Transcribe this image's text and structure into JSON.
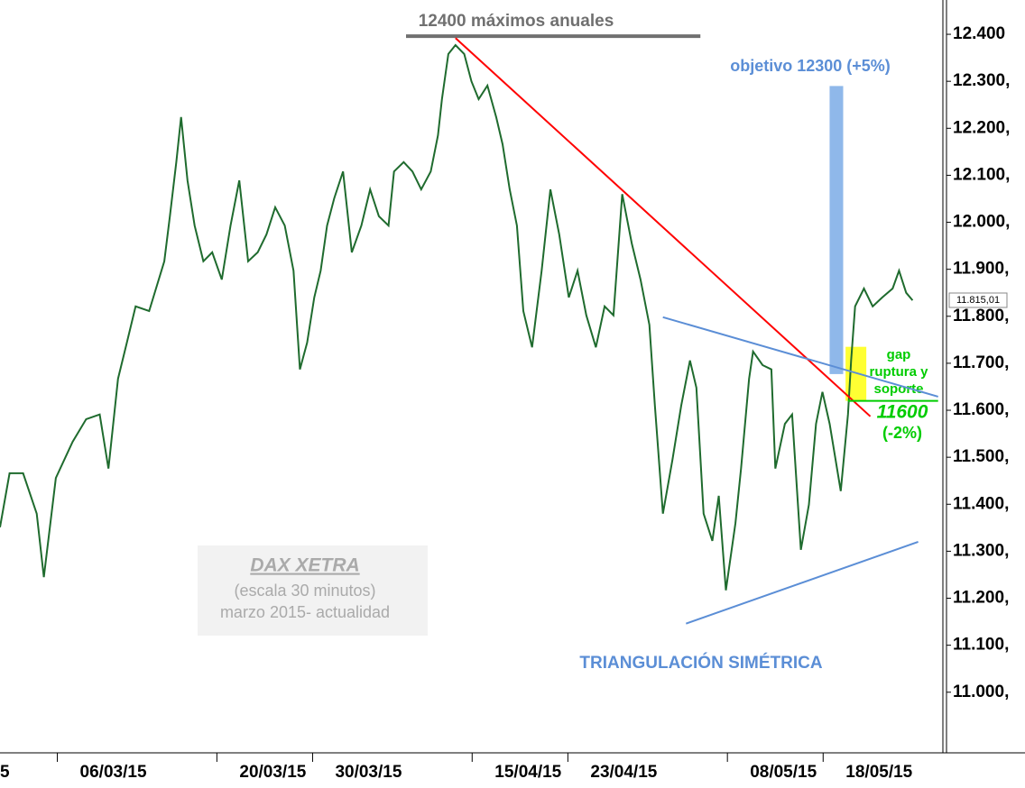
{
  "chart_data": {
    "type": "line",
    "x": [
      -1.1,
      -0.5,
      0.35,
      1.2,
      1.65,
      2.4,
      3.45,
      4.3,
      5.15,
      5.7,
      6.3,
      6.85,
      7.4,
      8.25,
      9.2,
      9.55,
      9.95,
      10.25,
      10.65,
      11.1,
      11.65,
      12.2,
      12.8,
      13.35,
      13.9,
      14.45,
      15.05,
      15.6,
      16.15,
      16.75,
      17.3,
      17.7,
      18.15,
      18.6,
      19.0,
      19.4,
      19.85,
      20.4,
      20.95,
      21.55,
      22.1,
      22.65,
      23.25,
      23.6,
      24.2,
      24.75,
      25.3,
      25.9,
      26.35,
      26.6,
      27.0,
      27.45,
      28.0,
      28.45,
      28.9,
      29.45,
      30.0,
      30.4,
      30.85,
      31.3,
      31.7,
      32.25,
      32.85,
      33.4,
      33.95,
      34.55,
      35.1,
      35.65,
      36.25,
      36.8,
      37.35,
      37.9,
      38.5,
      39.05,
      39.6,
      39.95,
      40.45,
      41.05,
      41.6,
      42.15,
      42.55,
      43.0,
      43.55,
      43.95,
      44.4,
      45.0,
      45.35,
      45.85,
      46.1,
      46.7,
      47.25,
      47.5,
      48.1,
      48.55,
      49.1,
      49.6,
      50.05,
      50.45,
      50.9,
      51.6,
      52.05,
      52.25,
      52.5,
      53.05,
      53.6,
      54.2,
      54.85,
      55.25,
      55.7,
      56.1
    ],
    "series": [
      {
        "name": "DAX XETRA",
        "color": "#1f6b2e",
        "values": [
          11351,
          11466,
          11466,
          11380,
          11245,
          11456,
          11533,
          11581,
          11591,
          11476,
          11667,
          11744,
          11821,
          11811,
          11917,
          12013,
          12128,
          12224,
          12089,
          11993,
          11917,
          11936,
          11878,
          11993,
          12089,
          11917,
          11936,
          11974,
          12032,
          11993,
          11897,
          11687,
          11744,
          11840,
          11897,
          11993,
          12051,
          12108,
          11936,
          11993,
          12070,
          12013,
          11993,
          12108,
          12128,
          12108,
          12070,
          12108,
          12185,
          12262,
          12358,
          12377,
          12358,
          12300,
          12262,
          12291,
          12224,
          12166,
          12070,
          11993,
          11811,
          11734,
          11897,
          12070,
          11974,
          11840,
          11897,
          11802,
          11734,
          11821,
          11802,
          12060,
          11955,
          11878,
          11782,
          11610,
          11380,
          11495,
          11610,
          11706,
          11648,
          11380,
          11322,
          11418,
          11217,
          11360,
          11476,
          11667,
          11725,
          11696,
          11687,
          11476,
          11571,
          11591,
          11303,
          11399,
          11571,
          11639,
          11571,
          11428,
          11591,
          11706,
          11821,
          11859,
          11821,
          11840,
          11859,
          11897,
          11850,
          11834
        ]
      }
    ],
    "xlim": [
      -1.1,
      58
    ],
    "xticks": [
      {
        "value": -0.8,
        "label": "5"
      },
      {
        "value": 6,
        "label": "06/03/15"
      },
      {
        "value": 16,
        "label": "20/03/15"
      },
      {
        "value": 22,
        "label": "30/03/15"
      },
      {
        "value": 32,
        "label": "15/04/15"
      },
      {
        "value": 38,
        "label": "23/04/15"
      },
      {
        "value": 48,
        "label": "08/05/15"
      },
      {
        "value": 54,
        "label": "18/05/15"
      }
    ],
    "ylim": [
      10871,
      12473
    ],
    "yticks": [
      {
        "value": 12400,
        "label": "12.400"
      },
      {
        "value": 12300,
        "label": "12.300,"
      },
      {
        "value": 12200,
        "label": "12.200,"
      },
      {
        "value": 12100,
        "label": "12.100,"
      },
      {
        "value": 12000,
        "label": "12.000,"
      },
      {
        "value": 11900,
        "label": "11.900,"
      },
      {
        "value": 11800,
        "label": "11.800,"
      },
      {
        "value": 11700,
        "label": "11.700,"
      },
      {
        "value": 11600,
        "label": "11.600,"
      },
      {
        "value": 11500,
        "label": "11.500,"
      },
      {
        "value": 11400,
        "label": "11.400,"
      },
      {
        "value": 11300,
        "label": "11.300,"
      },
      {
        "value": 11200,
        "label": "11.200,"
      },
      {
        "value": 11100,
        "label": "11.100,"
      },
      {
        "value": 11000,
        "label": "11.000,"
      }
    ],
    "trend_lines": [
      {
        "x": [
          24.35,
          42.8
        ],
        "y": [
          12396,
          12396
        ],
        "color": "#707070"
      },
      {
        "x": [
          27.45,
          53.45
        ],
        "y": [
          12392,
          11587
        ],
        "color": "#ff0000"
      },
      {
        "x": [
          40.45,
          57.7
        ],
        "y": [
          11798,
          11629
        ],
        "color": "#5b8ed6"
      },
      {
        "x": [
          41.9,
          56.45
        ],
        "y": [
          11146,
          11320
        ],
        "color": "#5b8ed6"
      },
      {
        "x": [
          52.05,
          57.7
        ],
        "y": [
          11620,
          11620
        ],
        "color": "#00cc00"
      }
    ],
    "bands": [
      {
        "x": [
          50.9,
          51.75
        ],
        "y": [
          11677,
          12290
        ],
        "color": "#8fb8ea"
      },
      {
        "x": [
          51.9,
          53.2
        ],
        "y": [
          11620,
          11735
        ],
        "color": "#ffff33"
      }
    ],
    "annotations": [
      "12400 máximos anuales",
      "objetivo 12300 (+5%)",
      "gap",
      "ruptura y",
      "soporte",
      "11600",
      "(-2%)",
      "TRIANGULACIÓN SIMÉTRICA",
      "DAX XETRA",
      "(escala 30 minutos)",
      "marzo 2015- actualidad",
      "11.815,01"
    ]
  }
}
